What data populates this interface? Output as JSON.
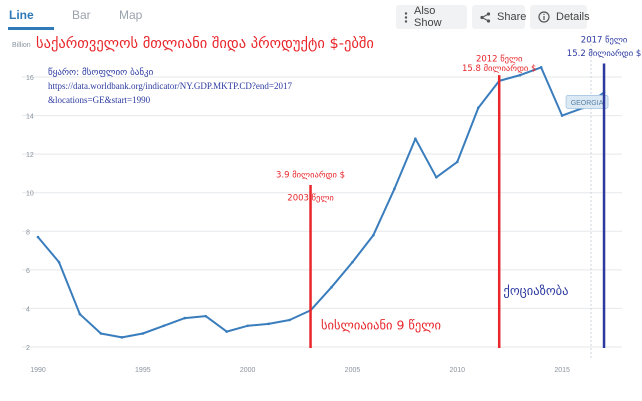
{
  "tabs": [
    {
      "label": "Line"
    },
    {
      "label": "Bar"
    },
    {
      "label": "Map"
    }
  ],
  "toolbar": {
    "also_show_label": "Also Show",
    "share_label": "Share",
    "details_label": "Details"
  },
  "chart_data": {
    "type": "line",
    "title": "საქართველოს მთლიანი შიდა პროდუქტი  $-ებში",
    "source_label": "წყარო: მსოფლიო ბანკი",
    "source_url": "https://data.worldbank.org/indicator/NY.GDP.MKTP.CD?end=2017",
    "source_params": "&locations=GE&start=1990",
    "ylabel": "Billion",
    "xlim": [
      1990,
      2018
    ],
    "ylim": [
      1.6,
      18
    ],
    "x_ticks": [
      1990,
      1995,
      2000,
      2005,
      2010,
      2015
    ],
    "y_ticks": [
      2,
      4,
      6,
      8,
      10,
      12,
      14,
      16
    ],
    "series": [
      {
        "name": "GEORGIA",
        "x": [
          1990,
          1991,
          1992,
          1993,
          1994,
          1995,
          1996,
          1997,
          1998,
          1999,
          2000,
          2001,
          2002,
          2003,
          2004,
          2005,
          2006,
          2007,
          2008,
          2009,
          2010,
          2011,
          2012,
          2013,
          2014,
          2015,
          2016,
          2017
        ],
        "values": [
          7.7,
          6.4,
          3.7,
          2.7,
          2.5,
          2.7,
          3.1,
          3.5,
          3.6,
          2.8,
          3.1,
          3.2,
          3.4,
          3.9,
          5.1,
          6.4,
          7.8,
          10.2,
          12.8,
          10.8,
          11.6,
          14.4,
          15.8,
          16.1,
          16.5,
          14.0,
          14.4,
          15.2
        ]
      }
    ],
    "annotations": [
      {
        "year": 2003,
        "line_top_value": 10.4,
        "color": "#e8262b",
        "text": [
          "3.9 მილიარდი $",
          "2003 წელი"
        ],
        "text_value": [
          10.8,
          9.6
        ]
      },
      {
        "year": 2012,
        "line_top_value": 16.1,
        "color": "#e8262b",
        "text": [
          "2012 წელი",
          "15.8 მილიარდი $"
        ],
        "text_value": [
          16.8,
          16.3
        ]
      },
      {
        "year": 2017,
        "line_top_value": 16.7,
        "color": "#2c3aa0",
        "text": [
          "2017 წელი",
          "15.2 მილიარდი $"
        ],
        "text_value": [
          17.8,
          17.1
        ]
      }
    ],
    "period_labels": [
      {
        "text": "სისლიაიანი 9 წელი",
        "color": "#e8262b",
        "x": 2003.5,
        "value": 2.9
      },
      {
        "text": "ქოციაზობა",
        "color": "#2c3aa0",
        "x": 2012.2,
        "value": 4.7
      }
    ]
  }
}
